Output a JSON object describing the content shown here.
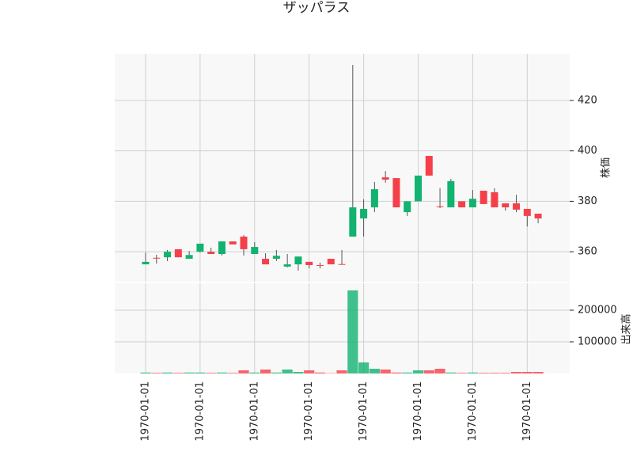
{
  "chart_data": {
    "type": "candlestick",
    "title": "ザッパラス",
    "ylabel": "株価",
    "volume_ylabel": "出来高",
    "categories": [
      "1970-01-01",
      null,
      null,
      null,
      null,
      "1970-01-01",
      null,
      null,
      null,
      null,
      "1970-01-01",
      null,
      null,
      null,
      null,
      "1970-01-01",
      null,
      null,
      null,
      null,
      "1970-01-01",
      null,
      null,
      null,
      null,
      "1970-01-01",
      null,
      null,
      null,
      null,
      "1970-01-01",
      null,
      null,
      null,
      null,
      "1970-01-01",
      null
    ],
    "open": [
      355,
      357.6,
      357.8,
      361,
      357.2,
      360,
      360,
      359.1,
      364.1,
      366,
      359.1,
      357.2,
      357.2,
      354.1,
      355,
      356,
      354.7,
      357.2,
      355.1,
      366,
      373.2,
      377.6,
      389.5,
      389.2,
      375.7,
      380,
      398,
      378,
      377.6,
      380,
      377.6,
      384.2,
      383.6,
      379.2,
      379.2,
      377,
      375.1
    ],
    "high": [
      359.7,
      358.8,
      360.7,
      361,
      360.3,
      363.2,
      361.6,
      364.1,
      364.1,
      366.6,
      363.8,
      359.4,
      360.7,
      359.1,
      358.1,
      356,
      355.7,
      357.2,
      360.7,
      434.1,
      380.8,
      387.7,
      392,
      389.2,
      380,
      390.2,
      398,
      385.2,
      388.9,
      380,
      384.5,
      384.2,
      385.2,
      379.2,
      382.6,
      377,
      375.1
    ],
    "low": [
      355,
      355.3,
      356.3,
      357.8,
      357.2,
      359.7,
      359.1,
      358.5,
      362.9,
      358.5,
      359.1,
      355,
      356.3,
      353.8,
      352.5,
      353.4,
      353.4,
      355,
      354.9,
      366,
      366,
      375.7,
      387.4,
      377.6,
      374.2,
      380,
      390.2,
      377.3,
      377.6,
      377.6,
      377.6,
      378.9,
      377.6,
      376.3,
      375.7,
      370,
      371.3
    ],
    "close": [
      356,
      357.3,
      360,
      357.8,
      358.7,
      363.2,
      359.1,
      364.1,
      362.9,
      361,
      361.9,
      355,
      358.4,
      355,
      358.1,
      354.7,
      354.4,
      355,
      354.9,
      377.6,
      377,
      384.8,
      388.6,
      377.6,
      380,
      390.2,
      390.2,
      377.9,
      388,
      377.6,
      381,
      378.9,
      377.6,
      377.6,
      376.7,
      374.2,
      373.2
    ],
    "volume": [
      3000,
      2000,
      3000,
      2000,
      3000,
      3000,
      2000,
      3000,
      2000,
      10000,
      3000,
      12500,
      3000,
      12500,
      5000,
      10000,
      3000,
      1000,
      10000,
      262500,
      35000,
      15000,
      12500,
      3000,
      3000,
      10000,
      10000,
      15000,
      3000,
      2000,
      3000,
      2000,
      2000,
      2000,
      5000,
      5000,
      5000
    ],
    "up_color": "#12b270",
    "down_color": "#f5404a",
    "ylim": [
      347.8,
      438.5
    ],
    "yticks": [
      360,
      380,
      400,
      420
    ],
    "volume_ylim": [
      0,
      287500
    ],
    "volume_yticks": [
      100000,
      200000
    ],
    "grid": true
  }
}
